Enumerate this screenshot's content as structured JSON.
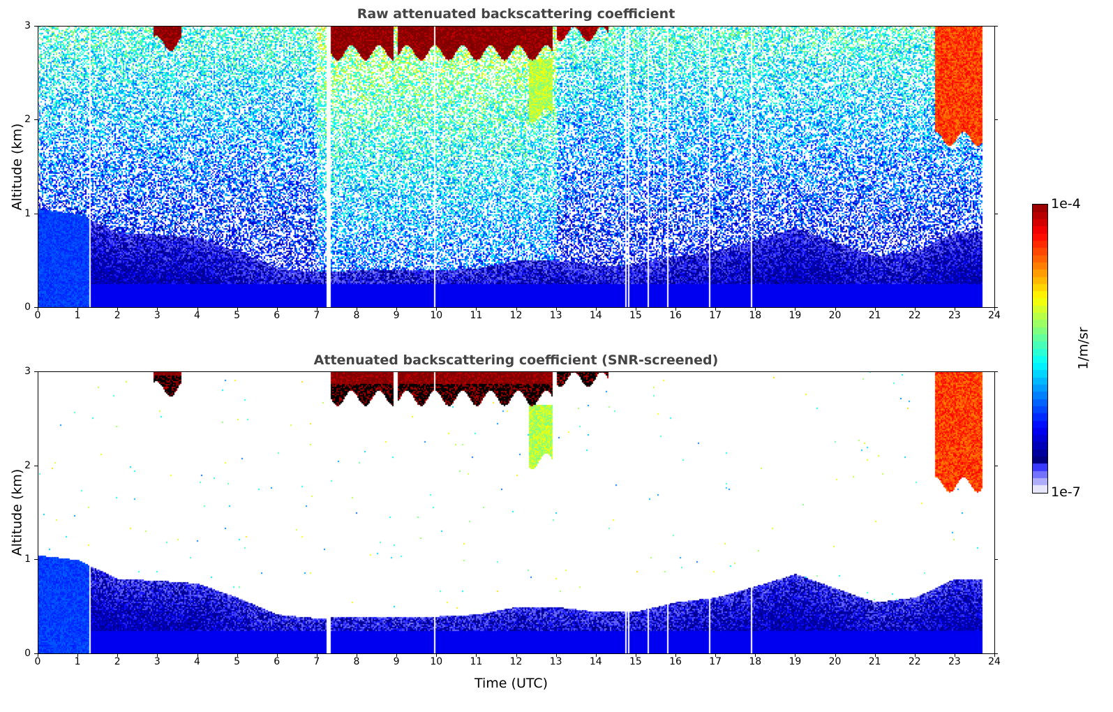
{
  "chart_data": [
    {
      "type": "heatmap",
      "title": "Raw attenuated backscattering coefficient",
      "xlabel": "",
      "ylabel": "Altitude (km)",
      "xlim": [
        0,
        24
      ],
      "ylim": [
        0,
        3
      ],
      "xticks": [
        0,
        1,
        2,
        3,
        4,
        5,
        6,
        7,
        8,
        9,
        10,
        11,
        12,
        13,
        14,
        15,
        16,
        17,
        18,
        19,
        20,
        21,
        22,
        23,
        24
      ],
      "yticks": [
        0,
        1,
        2,
        3
      ],
      "screened": false
    },
    {
      "type": "heatmap",
      "title": "Attenuated backscattering coefficient (SNR-screened)",
      "xlabel": "Time (UTC)",
      "ylabel": "Altitude (km)",
      "xlim": [
        0,
        24
      ],
      "ylim": [
        0,
        3
      ],
      "xticks": [
        0,
        1,
        2,
        3,
        4,
        5,
        6,
        7,
        8,
        9,
        10,
        11,
        12,
        13,
        14,
        15,
        16,
        17,
        18,
        19,
        20,
        21,
        22,
        23,
        24
      ],
      "yticks": [
        0,
        1,
        2,
        3
      ],
      "screened": true
    }
  ],
  "colorbar": {
    "label": "1/m/sr",
    "min_label": "1e-7",
    "max_label": "1e-4",
    "log_min": -7,
    "log_max": -4,
    "colormap": "jet"
  },
  "features": {
    "data_end_hour": 23.7,
    "gap_hours": [
      1.3,
      7.25,
      7.3,
      9.95,
      14.75,
      14.8,
      15.3,
      15.8,
      16.85,
      17.9
    ],
    "boundary_layer_top_km": [
      1.05,
      1.0,
      0.8,
      0.78,
      0.75,
      0.6,
      0.42,
      0.38,
      0.4,
      0.4,
      0.4,
      0.42,
      0.5,
      0.5,
      0.45,
      0.45,
      0.55,
      0.6,
      0.72,
      0.85,
      0.7,
      0.55,
      0.6,
      0.8,
      0.8
    ],
    "clouds": [
      {
        "t_start": 2.9,
        "t_end": 3.6,
        "base_km": 2.82,
        "top_km": 3.0,
        "log_beta": -4.0
      },
      {
        "t_start": 7.3,
        "t_end": 8.9,
        "base_km": 2.72,
        "top_km": 3.0,
        "log_beta": -4.0
      },
      {
        "t_start": 9.0,
        "t_end": 12.9,
        "base_km": 2.72,
        "top_km": 3.0,
        "log_beta": -4.0
      },
      {
        "t_start": 12.3,
        "t_end": 12.9,
        "base_km": 2.05,
        "top_km": 2.65,
        "log_beta": -5.2
      },
      {
        "t_start": 13.0,
        "t_end": 14.3,
        "base_km": 2.92,
        "top_km": 3.0,
        "log_beta": -4.1
      },
      {
        "t_start": 22.5,
        "t_end": 23.7,
        "base_km": 1.8,
        "top_km": 3.0,
        "log_beta": -4.5
      }
    ]
  }
}
